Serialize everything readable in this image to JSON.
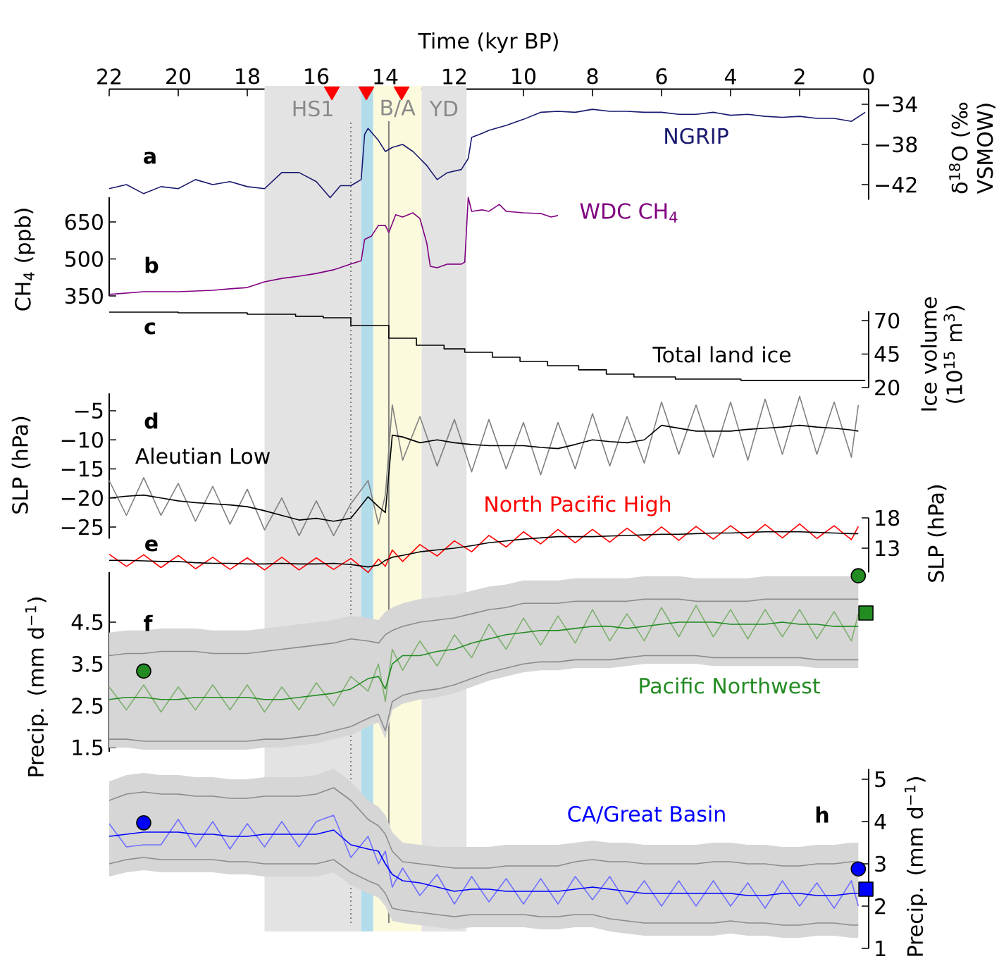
{
  "chart_data": [
    {
      "type": "line",
      "title": "a",
      "xlabel": "Time (kyr BP)",
      "ylabel": "δ$^{18}$O (‰ VSMOW)",
      "xlim": [
        22,
        0
      ],
      "xticks": [
        22,
        20,
        18,
        16,
        14,
        12,
        10,
        8,
        6,
        4,
        2,
        0
      ],
      "ylim": [
        -43.5,
        -32.5
      ],
      "yticks": [
        {
          "value": -34,
          "label": "−34"
        },
        {
          "value": -38,
          "label": "−38"
        },
        {
          "value": -42,
          "label": "−42"
        }
      ],
      "bands": [
        {
          "axis": "x",
          "from": 17.5,
          "to": 14.7,
          "label": "HS1",
          "color": "#e3e3e3"
        },
        {
          "axis": "x",
          "from": 14.7,
          "to": 14.35,
          "color": "#b3dcea"
        },
        {
          "axis": "x",
          "from": 14.35,
          "to": 12.95,
          "label": "B/A",
          "color": "#fcfadc"
        },
        {
          "axis": "x",
          "from": 12.95,
          "to": 11.65,
          "label": "YD",
          "color": "#e3e3e3"
        }
      ],
      "ref_lines": [
        {
          "axis": "x",
          "value": 15.0,
          "color": "#808080",
          "line_style": "dotted"
        },
        {
          "axis": "x",
          "value": 13.9,
          "color": "#808080",
          "line_style": "solid"
        }
      ],
      "series": [
        {
          "name": "NGRIP",
          "color": "#191970",
          "x": [
            22,
            21.5,
            21,
            20.5,
            20,
            19.5,
            19,
            18.5,
            18,
            17.5,
            17,
            16.5,
            16,
            15.6,
            15.3,
            15,
            14.7,
            14.6,
            14.5,
            14.2,
            14,
            13.8,
            13.5,
            13.2,
            13,
            12.8,
            12.5,
            12.2,
            11.8,
            11.6,
            11.5,
            11.2,
            11,
            10.5,
            10,
            9.5,
            9,
            8.5,
            8,
            7.5,
            7,
            6.5,
            6,
            5.5,
            5,
            4.5,
            4,
            3.5,
            3,
            2.5,
            2,
            1.5,
            1,
            0.5,
            0.1
          ],
          "values": [
            -42.4,
            -42,
            -42.9,
            -42.2,
            -42.4,
            -41.5,
            -42,
            -41.7,
            -42.2,
            -42.4,
            -40.8,
            -40.8,
            -41.7,
            -43.3,
            -42.1,
            -42.1,
            -41.5,
            -37,
            -36.4,
            -37.6,
            -38.7,
            -38.3,
            -38,
            -38.7,
            -39.4,
            -40.1,
            -41.5,
            -40.8,
            -40.5,
            -39.4,
            -37.3,
            -36.9,
            -36.6,
            -36.1,
            -35.5,
            -34.8,
            -34.7,
            -34.8,
            -34.5,
            -34.7,
            -34.7,
            -34.8,
            -34.8,
            -35,
            -35,
            -34.8,
            -35.1,
            -35,
            -35.2,
            -35.3,
            -35.2,
            -35.4,
            -35.4,
            -35.7,
            -34.8
          ]
        },
        {
          "type": "scatter",
          "marker": "triangle",
          "color": "#ff0000",
          "x": [
            15.55,
            14.55,
            13.53
          ],
          "values": [
            -32.7,
            -32.7,
            -32.7
          ]
        }
      ]
    },
    {
      "type": "line",
      "title": "b",
      "ylabel": "CH$_{4}$ (ppb)",
      "xlim": [
        22,
        0
      ],
      "tick_labels": "y",
      "ylim": [
        350,
        750
      ],
      "yticks": [
        350,
        500,
        650
      ],
      "series": [
        {
          "name": "WDC CH$_{4}$",
          "color": "#800080",
          "x": [
            22,
            21,
            20,
            19,
            18.5,
            18,
            17.5,
            17,
            16.5,
            16,
            15.5,
            15,
            14.7,
            14.6,
            14.4,
            14.2,
            14,
            13.9,
            13.7,
            13.5,
            13.2,
            13,
            12.8,
            12.7,
            12.5,
            12.2,
            11.8,
            11.7,
            11.6,
            11.5,
            11.2,
            11,
            10.7,
            10.5,
            10,
            9.5,
            9.2,
            9
          ],
          "values": [
            356,
            367,
            367,
            373,
            379,
            384,
            407,
            421,
            430,
            441,
            456,
            479,
            493,
            579,
            593,
            636,
            636,
            607,
            679,
            670,
            687,
            664,
            564,
            470,
            464,
            479,
            479,
            487,
            750,
            693,
            699,
            693,
            721,
            693,
            687,
            684,
            670,
            676
          ]
        }
      ]
    },
    {
      "type": "step",
      "title": "c",
      "ylabel": "Ice volume (10$^{15}$ m$^{3}$)",
      "xlim": [
        22,
        0
      ],
      "tick_labels": "y",
      "ylim": [
        20,
        77
      ],
      "yticks": [
        70,
        45,
        20
      ],
      "series": [
        {
          "name": "Total land ice",
          "color": "#000000",
          "x": [
            22,
            20,
            18,
            16.6,
            15.8,
            15,
            13.9,
            13.1,
            12.3,
            11.7,
            10.9,
            10.1,
            9.3,
            8.4,
            7.6,
            6.8,
            5.6,
            3.7,
            0.1
          ],
          "values": [
            76.3,
            75.8,
            74.7,
            73.2,
            72.1,
            66.3,
            56.8,
            51.6,
            48.9,
            46.3,
            42.6,
            39.5,
            36.3,
            33.2,
            30,
            27.9,
            26.3,
            25.3,
            25.3
          ]
        }
      ]
    },
    {
      "type": "line",
      "title": "d",
      "ylabel": "SLP (hPa)",
      "xlim": [
        22,
        0
      ],
      "tick_labels": "y",
      "ylim": [
        -27,
        -2
      ],
      "yticks": [
        {
          "value": -5,
          "label": "−5"
        },
        {
          "value": -10,
          "label": "−10"
        },
        {
          "value": -15,
          "label": "−15"
        },
        {
          "value": -20,
          "label": "−20"
        },
        {
          "value": -25,
          "label": "−25"
        }
      ],
      "x": [
        22,
        21.5,
        21,
        20.5,
        20,
        19.5,
        19,
        18.5,
        18,
        17.5,
        17,
        16.5,
        16,
        15.5,
        15,
        14.5,
        14.2,
        14,
        13.8,
        13.5,
        13,
        12.5,
        12,
        11.5,
        11,
        10.5,
        10,
        9.5,
        9,
        8.5,
        8,
        7.5,
        7,
        6.5,
        6,
        5.5,
        5,
        4.5,
        4,
        3.5,
        3,
        2.5,
        2,
        1.5,
        1,
        0.5,
        0.3
      ],
      "series": [
        {
          "color": "#808080",
          "values": [
            -17,
            -23,
            -16.5,
            -23,
            -17.5,
            -24,
            -18,
            -24.5,
            -18.5,
            -25.5,
            -20,
            -26.5,
            -20.5,
            -26.5,
            -21,
            -17,
            -24.5,
            -19.5,
            -4,
            -13.5,
            -6,
            -14.5,
            -6.5,
            -15.5,
            -6.5,
            -15,
            -7,
            -16,
            -7,
            -15,
            -5.5,
            -14.5,
            -6,
            -14,
            -3.5,
            -12.5,
            -4,
            -13,
            -3.5,
            -13.5,
            -3,
            -12.5,
            -2.5,
            -12.5,
            -3.5,
            -13,
            -4
          ]
        },
        {
          "name": "Aleutian Low",
          "color": "#000000",
          "values": [
            -20,
            -19.7,
            -19.5,
            -20,
            -20.5,
            -20.8,
            -21,
            -21.2,
            -21.5,
            -22.2,
            -23,
            -23.8,
            -23.5,
            -24,
            -23.5,
            -19.8,
            -21.5,
            -22.5,
            -9.2,
            -9.5,
            -10.5,
            -10,
            -10.5,
            -10.8,
            -11,
            -11,
            -11,
            -11.3,
            -11.5,
            -10.8,
            -10,
            -10.3,
            -10.5,
            -10,
            -7.5,
            -8,
            -8.5,
            -8.5,
            -8.5,
            -8.2,
            -8,
            -7.8,
            -7.5,
            -7.8,
            -8,
            -8.3,
            -8.5
          ]
        }
      ]
    },
    {
      "type": "line",
      "title": "e",
      "ylabel": "SLP (hPa)",
      "xlim": [
        22,
        0
      ],
      "tick_labels": "y",
      "ylim": [
        9,
        18
      ],
      "yticks": [
        18,
        13
      ],
      "x": [
        22,
        21.5,
        21,
        20.5,
        20,
        19.5,
        19,
        18.5,
        18,
        17.5,
        17,
        16.5,
        16,
        15.5,
        15,
        14.5,
        14.2,
        14,
        13.8,
        13.5,
        13,
        12.5,
        12,
        11.5,
        11,
        10.5,
        10,
        9.5,
        9,
        8.5,
        8,
        7.5,
        7,
        6.5,
        6,
        5.5,
        5,
        4.5,
        4,
        3.5,
        3,
        2.5,
        2,
        1.5,
        1,
        0.5,
        0.3
      ],
      "series": [
        {
          "name": "North Pacific High",
          "color": "#ff0000",
          "values": [
            12.0,
            10.0,
            11.9,
            9.8,
            11.8,
            9.6,
            11.5,
            9.5,
            11.4,
            9.4,
            11.5,
            9.4,
            11.4,
            9.5,
            11.3,
            9.0,
            11.2,
            10.0,
            12.7,
            10.8,
            13.6,
            11.7,
            14.2,
            12.4,
            15.1,
            13.2,
            15.7,
            13.7,
            16.1,
            13.9,
            16.1,
            14.0,
            16.3,
            14.2,
            16.5,
            14.3,
            16.6,
            14.5,
            16.7,
            14.6,
            16.9,
            14.7,
            17.0,
            14.6,
            16.7,
            14.4,
            16.6
          ]
        },
        {
          "color": "#000000",
          "values": [
            11.0,
            11.0,
            10.9,
            10.8,
            10.8,
            10.6,
            10.5,
            10.5,
            10.4,
            10.4,
            10.5,
            10.4,
            10.4,
            10.5,
            10.3,
            9.9,
            10.2,
            11.0,
            11.5,
            11.8,
            12.4,
            12.7,
            13.0,
            13.4,
            13.9,
            14.2,
            14.5,
            14.7,
            14.9,
            14.9,
            14.9,
            15.0,
            15.1,
            15.2,
            15.3,
            15.3,
            15.4,
            15.5,
            15.5,
            15.6,
            15.7,
            15.7,
            15.7,
            15.6,
            15.5,
            15.4,
            15.4
          ]
        }
      ]
    },
    {
      "type": "line",
      "title": "f",
      "ylabel": "Precip. (mm d$^{−1}$)",
      "xlim": [
        22,
        0
      ],
      "tick_labels": "y",
      "ylim": [
        1.4,
        5.7
      ],
      "yticks": [
        4.5,
        3.5,
        2.5,
        1.5
      ],
      "x": [
        22,
        21.5,
        21,
        20.5,
        20,
        19.5,
        19,
        18.5,
        18,
        17.5,
        17,
        16.5,
        16,
        15.5,
        15,
        14.5,
        14.2,
        14,
        13.8,
        13.5,
        13,
        12.5,
        12,
        11.5,
        11,
        10.5,
        10,
        9.5,
        9,
        8.5,
        8,
        7.5,
        7,
        6.5,
        6,
        5.5,
        5,
        4.5,
        4,
        3.5,
        3,
        2.5,
        2,
        1.5,
        1,
        0.5,
        0.3
      ],
      "series": [
        {
          "color": "#8c8c8c",
          "values": [
            3.7,
            3.75,
            3.75,
            3.8,
            3.8,
            3.8,
            3.75,
            3.75,
            3.75,
            3.8,
            3.85,
            3.9,
            3.95,
            4.0,
            4.1,
            4.05,
            4.0,
            4.2,
            4.3,
            4.4,
            4.5,
            4.55,
            4.6,
            4.7,
            4.8,
            4.85,
            4.95,
            4.95,
            4.95,
            5.0,
            5.0,
            5.0,
            5.0,
            5.05,
            5.05,
            5.05,
            5.0,
            5.0,
            5.0,
            5.0,
            5.05,
            5.05,
            5.05,
            5.05,
            5.05,
            5.05,
            5.05
          ]
        },
        {
          "color": "#8c8c8c",
          "values": [
            1.7,
            1.7,
            1.65,
            1.65,
            1.65,
            1.65,
            1.65,
            1.65,
            1.65,
            1.7,
            1.7,
            1.75,
            1.8,
            1.9,
            2.0,
            2.2,
            2.3,
            1.9,
            2.6,
            2.75,
            2.85,
            2.9,
            3.0,
            3.15,
            3.3,
            3.4,
            3.5,
            3.55,
            3.55,
            3.6,
            3.6,
            3.6,
            3.65,
            3.7,
            3.7,
            3.7,
            3.7,
            3.65,
            3.65,
            3.65,
            3.65,
            3.65,
            3.65,
            3.6,
            3.6,
            3.6,
            3.6
          ]
        },
        {
          "color": "#7fb070",
          "values": [
            2.95,
            2.4,
            3.0,
            2.35,
            2.95,
            2.4,
            3.0,
            2.4,
            3.0,
            2.35,
            2.95,
            2.4,
            3.05,
            2.5,
            3.2,
            2.85,
            3.5,
            2.6,
            3.85,
            3.35,
            4.05,
            3.45,
            4.2,
            3.65,
            4.45,
            3.85,
            4.6,
            3.95,
            4.65,
            4.0,
            4.8,
            4.05,
            4.7,
            4.05,
            4.85,
            4.15,
            4.9,
            4.15,
            4.8,
            4.1,
            4.8,
            4.15,
            4.8,
            4.1,
            4.75,
            4.05,
            4.7
          ]
        },
        {
          "name": "Pacific Northwest",
          "color": "#228b22",
          "values": [
            2.65,
            2.7,
            2.7,
            2.65,
            2.65,
            2.7,
            2.7,
            2.7,
            2.7,
            2.65,
            2.65,
            2.7,
            2.75,
            2.8,
            2.9,
            3.15,
            3.2,
            2.9,
            3.5,
            3.7,
            3.7,
            3.8,
            3.85,
            4.0,
            4.1,
            4.2,
            4.25,
            4.3,
            4.3,
            4.35,
            4.4,
            4.4,
            4.35,
            4.4,
            4.45,
            4.5,
            4.5,
            4.5,
            4.45,
            4.45,
            4.45,
            4.5,
            4.45,
            4.45,
            4.4,
            4.4,
            4.4
          ],
          "lower": [
            1.5,
            1.5,
            1.45,
            1.45,
            1.45,
            1.45,
            1.45,
            1.45,
            1.45,
            1.5,
            1.5,
            1.55,
            1.6,
            1.7,
            1.8,
            2.0,
            2.1,
            1.7,
            2.4,
            2.55,
            2.65,
            2.7,
            2.8,
            2.95,
            3.1,
            3.2,
            3.3,
            3.35,
            3.35,
            3.4,
            3.4,
            3.4,
            3.45,
            3.5,
            3.5,
            3.5,
            3.5,
            3.45,
            3.45,
            3.45,
            3.45,
            3.45,
            3.45,
            3.4,
            3.4,
            3.4,
            3.4
          ],
          "upper": [
            4.25,
            4.3,
            4.3,
            4.35,
            4.35,
            4.35,
            4.3,
            4.3,
            4.3,
            4.35,
            4.4,
            4.45,
            4.5,
            4.55,
            4.65,
            4.6,
            4.55,
            4.75,
            4.85,
            4.95,
            5.05,
            5.1,
            5.15,
            5.25,
            5.35,
            5.4,
            5.5,
            5.5,
            5.5,
            5.55,
            5.55,
            5.55,
            5.55,
            5.6,
            5.6,
            5.6,
            5.55,
            5.55,
            5.55,
            5.55,
            5.6,
            5.6,
            5.6,
            5.6,
            5.6,
            5.6,
            5.6
          ]
        },
        {
          "type": "scatter",
          "marker": "circle",
          "color": "#228b22",
          "x": [
            21,
            0.3
          ],
          "values": [
            3.33,
            5.61
          ]
        },
        {
          "type": "scatter",
          "marker": "square",
          "color": "#228b22",
          "x": [
            0.08
          ],
          "values": [
            4.72
          ]
        }
      ]
    },
    {
      "type": "line",
      "title": "h",
      "ylabel": "Precip. (mm d$^{−1}$)",
      "xlim": [
        22,
        0
      ],
      "tick_labels": "y",
      "ylim": [
        1,
        5.25
      ],
      "yticks": [
        5,
        4,
        3,
        2,
        1
      ],
      "x": [
        22,
        21.5,
        21,
        20.5,
        20,
        19.5,
        19,
        18.5,
        18,
        17.5,
        17,
        16.5,
        16,
        15.5,
        15,
        14.5,
        14.2,
        14,
        13.8,
        13.5,
        13,
        12.5,
        12,
        11.5,
        11,
        10.5,
        10,
        9.5,
        9,
        8.5,
        8,
        7.5,
        7,
        6.5,
        6,
        5.5,
        5,
        4.5,
        4,
        3.5,
        3,
        2.5,
        2,
        1.5,
        1,
        0.5,
        0.3
      ],
      "series": [
        {
          "color": "#8c8c8c",
          "values": [
            4.5,
            4.65,
            4.7,
            4.65,
            4.65,
            4.6,
            4.6,
            4.55,
            4.55,
            4.6,
            4.6,
            4.6,
            4.65,
            4.8,
            4.5,
            4.05,
            3.9,
            3.7,
            3.3,
            3.05,
            3.0,
            2.95,
            2.9,
            2.9,
            2.9,
            2.95,
            2.95,
            2.95,
            2.95,
            3.05,
            3.1,
            3.05,
            3.05,
            3.0,
            3.0,
            3.0,
            3.0,
            3.05,
            3.05,
            3.0,
            3.0,
            2.95,
            2.95,
            3.0,
            3.0,
            3.05,
            3.05
          ]
        },
        {
          "color": "#8c8c8c",
          "values": [
            3.0,
            3.1,
            3.15,
            3.1,
            3.1,
            3.1,
            3.1,
            3.05,
            3.05,
            3.0,
            3.0,
            3.0,
            3.0,
            3.1,
            2.8,
            2.6,
            2.5,
            2.3,
            1.95,
            1.9,
            1.85,
            1.8,
            1.75,
            1.8,
            1.8,
            1.8,
            1.8,
            1.75,
            1.75,
            1.8,
            1.8,
            1.7,
            1.65,
            1.6,
            1.6,
            1.6,
            1.6,
            1.6,
            1.65,
            1.6,
            1.6,
            1.55,
            1.55,
            1.6,
            1.6,
            1.55,
            1.55
          ]
        },
        {
          "color": "#7070ff",
          "values": [
            3.95,
            3.4,
            3.45,
            3.45,
            4.05,
            3.4,
            4.0,
            3.35,
            3.95,
            3.4,
            4.0,
            3.4,
            4.0,
            4.15,
            3.15,
            3.65,
            3.0,
            3.3,
            2.45,
            2.9,
            2.25,
            2.75,
            2.05,
            2.7,
            2.1,
            2.65,
            2.05,
            2.65,
            2.05,
            2.7,
            2.15,
            2.7,
            2.05,
            2.6,
            2.0,
            2.6,
            2.0,
            2.6,
            2.0,
            2.55,
            1.95,
            2.6,
            2.0,
            2.55,
            1.95,
            2.6,
            2.0
          ]
        },
        {
          "name": "CA/Great Basin",
          "color": "#0000ff",
          "values": [
            3.65,
            3.7,
            3.75,
            3.75,
            3.75,
            3.7,
            3.7,
            3.65,
            3.65,
            3.7,
            3.7,
            3.7,
            3.7,
            3.8,
            3.45,
            3.35,
            3.3,
            3.0,
            2.75,
            2.6,
            2.55,
            2.45,
            2.35,
            2.4,
            2.4,
            2.35,
            2.35,
            2.35,
            2.35,
            2.4,
            2.45,
            2.4,
            2.35,
            2.3,
            2.3,
            2.3,
            2.3,
            2.3,
            2.3,
            2.25,
            2.25,
            2.3,
            2.3,
            2.25,
            2.25,
            2.3,
            2.3
          ],
          "lower": [
            2.7,
            2.8,
            2.85,
            2.8,
            2.8,
            2.8,
            2.8,
            2.75,
            2.75,
            2.7,
            2.7,
            2.7,
            2.7,
            2.8,
            2.5,
            2.3,
            2.2,
            2.0,
            1.65,
            1.6,
            1.55,
            1.5,
            1.45,
            1.5,
            1.5,
            1.5,
            1.5,
            1.45,
            1.45,
            1.5,
            1.5,
            1.4,
            1.35,
            1.3,
            1.3,
            1.3,
            1.3,
            1.3,
            1.35,
            1.3,
            1.3,
            1.25,
            1.25,
            1.3,
            1.3,
            1.25,
            1.25
          ],
          "upper": [
            4.95,
            5.1,
            5.15,
            5.1,
            5.1,
            5.05,
            5.05,
            5.0,
            5.0,
            5.05,
            5.05,
            5.05,
            5.1,
            5.25,
            4.95,
            4.5,
            4.35,
            4.15,
            3.75,
            3.5,
            3.45,
            3.4,
            3.4,
            3.4,
            3.4,
            3.45,
            3.45,
            3.45,
            3.45,
            3.5,
            3.55,
            3.5,
            3.5,
            3.45,
            3.45,
            3.45,
            3.45,
            3.5,
            3.5,
            3.45,
            3.45,
            3.4,
            3.4,
            3.45,
            3.45,
            3.5,
            3.5
          ]
        },
        {
          "type": "scatter",
          "marker": "circle",
          "color": "#0000ff",
          "x": [
            21,
            0.3
          ],
          "values": [
            3.97,
            2.88
          ]
        },
        {
          "type": "scatter",
          "marker": "square",
          "color": "#0000ff",
          "x": [
            0.08
          ],
          "values": [
            2.4
          ]
        }
      ]
    }
  ]
}
